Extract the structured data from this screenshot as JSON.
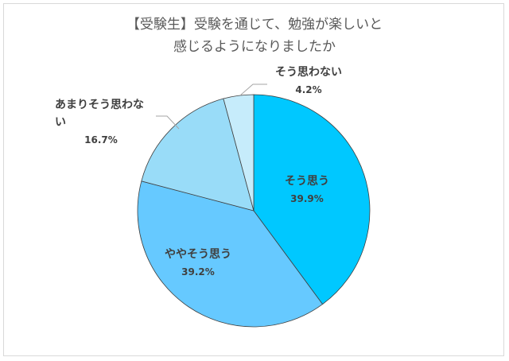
{
  "chart_data": {
    "type": "pie",
    "title_lines": [
      "【受験生】受験を通じて、勉強が楽しいと",
      "感じるようになりましたか"
    ],
    "slices": [
      {
        "label": "そう思う",
        "value": 39.9,
        "value_text": "39.9%",
        "color": "#00c8ff"
      },
      {
        "label": "ややそう思う",
        "value": 39.2,
        "value_text": "39.2%",
        "color": "#66c9ff"
      },
      {
        "label_lines": [
          "あまりそう思わな",
          "い"
        ],
        "value": 16.7,
        "value_text": "16.7%",
        "color": "#99dcf8"
      },
      {
        "label": "そう思わない",
        "value": 4.2,
        "value_text": "4.2%",
        "color": "#c6ecfb"
      }
    ],
    "start_angle": "top",
    "direction": "clockwise",
    "edge_color": "#404040"
  }
}
